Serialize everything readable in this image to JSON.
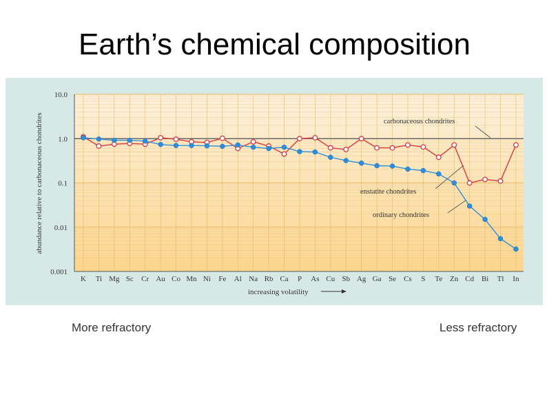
{
  "slide": {
    "title": "Earth’s chemical composition",
    "left_caption": "More refractory",
    "right_caption": "Less refractory"
  },
  "colors": {
    "panel_bg": "#d7e9e7",
    "plot_top": "#fdf1dc",
    "plot_bottom": "#fbd58e",
    "enstatite": "#d9383e",
    "ordinary": "#2e8fd8",
    "carbonaceous": "#666666"
  },
  "chart_data": {
    "type": "line",
    "title": "",
    "xlabel": "increasing volatility",
    "ylabel": "abundance relative to carbonaceous chondrites",
    "yscale": "log",
    "ylim": [
      0.001,
      10
    ],
    "yticks": [
      {
        "value": 10,
        "label": "10.0"
      },
      {
        "value": 1,
        "label": "1.0"
      },
      {
        "value": 0.1,
        "label": "0.1"
      },
      {
        "value": 0.01,
        "label": "0.01"
      },
      {
        "value": 0.001,
        "label": "0.001"
      }
    ],
    "grid": true,
    "categories": [
      "K",
      "Ti",
      "Mg",
      "Sc",
      "Cr",
      "Au",
      "Co",
      "Mn",
      "Ni",
      "Fe",
      "Al",
      "Na",
      "Rb",
      "Ca",
      "P",
      "As",
      "Cu",
      "Sb",
      "Ag",
      "Ga",
      "Se",
      "Cs",
      "S",
      "Te",
      "Zn",
      "Cd",
      "Bi",
      "Tl",
      "In"
    ],
    "reference_line": {
      "name": "carbonaceous chondrites",
      "value": 1.0
    },
    "series": [
      {
        "name": "enstatite chondrites",
        "marker": "open-circle",
        "values": [
          1.1,
          0.68,
          0.75,
          0.78,
          0.75,
          1.05,
          0.97,
          0.85,
          0.82,
          1.02,
          0.6,
          0.85,
          0.68,
          0.45,
          1.0,
          1.05,
          0.62,
          0.57,
          1.0,
          0.62,
          0.62,
          0.72,
          0.65,
          0.38,
          0.72,
          0.1,
          0.12,
          0.11,
          0.72
        ]
      },
      {
        "name": "ordinary chondrites",
        "marker": "filled-circle",
        "values": [
          1.05,
          0.98,
          0.92,
          0.92,
          0.88,
          0.74,
          0.7,
          0.7,
          0.69,
          0.67,
          0.72,
          0.64,
          0.6,
          0.64,
          0.51,
          0.5,
          0.38,
          0.32,
          0.28,
          0.245,
          0.24,
          0.205,
          0.19,
          0.16,
          0.1,
          0.03,
          0.015,
          0.0055,
          0.0032
        ]
      }
    ],
    "annotations": [
      "carbonaceous chondrites",
      "enstatite chondrites",
      "ordinary chondrites"
    ]
  }
}
